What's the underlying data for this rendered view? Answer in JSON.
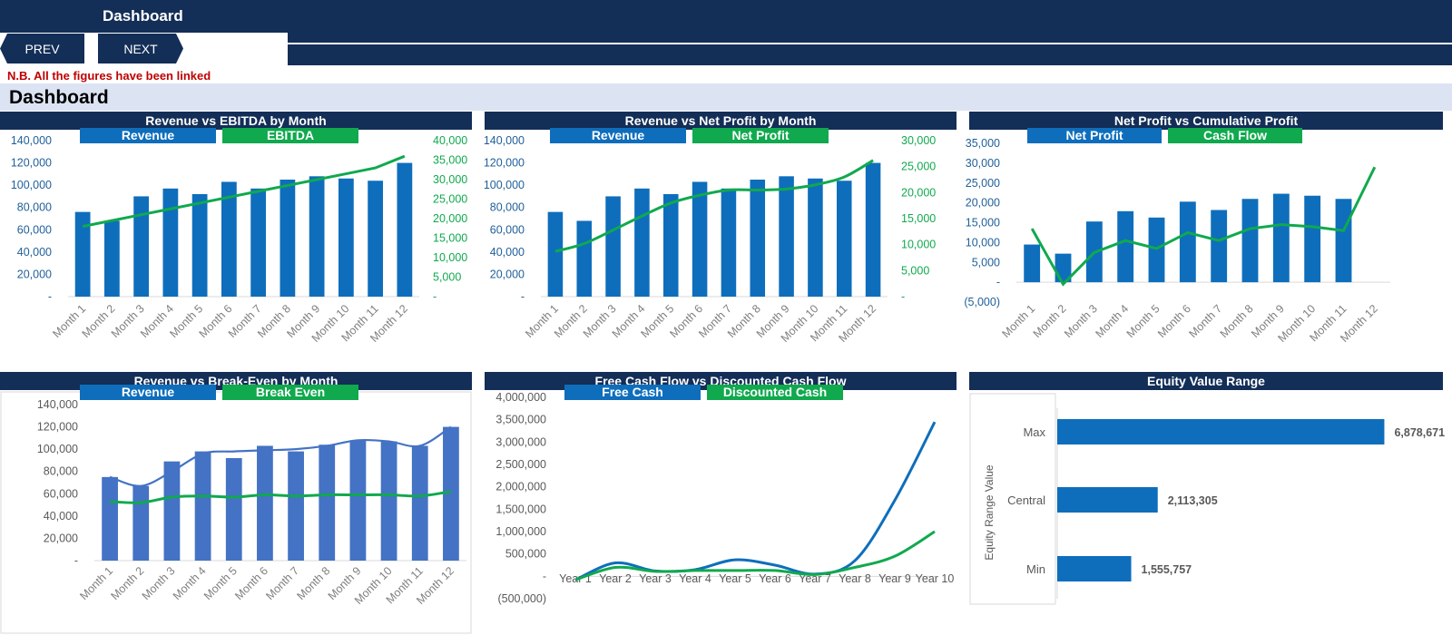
{
  "header": {
    "title": "Dashboard"
  },
  "nav": {
    "prev_label": "PREV",
    "next_label": "NEXT"
  },
  "note": "N.B. All the figures have been linked",
  "section": {
    "title": "Dashboard"
  },
  "colors": {
    "navy": "#132e57",
    "blue": "#0e6ebc",
    "green": "#10a94e",
    "bar_blue2": "#4472c4",
    "note_red": "#c00000",
    "section_bg": "#dce3f2"
  },
  "months": [
    "Month 1",
    "Month 2",
    "Month 3",
    "Month 4",
    "Month 5",
    "Month 6",
    "Month 7",
    "Month 8",
    "Month 9",
    "Month 10",
    "Month 11",
    "Month 12"
  ],
  "years": [
    "Year 1",
    "Year 2",
    "Year 3",
    "Year 4",
    "Year 5",
    "Year 6",
    "Year 7",
    "Year 8",
    "Year 9",
    "Year 10"
  ],
  "chart_data": [
    {
      "id": "c1",
      "type": "bar",
      "title": "Revenue vs EBITDA by Month",
      "legend": [
        {
          "label": "Revenue",
          "color": "#0e6ebc"
        },
        {
          "label": "EBITDA",
          "color": "#10a94e"
        }
      ],
      "categories_key": "months",
      "y_ticks": [
        "140,000",
        "120,000",
        "100,000",
        "80,000",
        "60,000",
        "40,000",
        "20,000",
        "-"
      ],
      "y2_ticks": [
        "40,000",
        "35,000",
        "30,000",
        "25,000",
        "20,000",
        "15,000",
        "10,000",
        "5,000",
        "-"
      ],
      "ylim": [
        0,
        140000
      ],
      "y2lim": [
        0,
        40000
      ],
      "bars": [
        76000,
        68000,
        90000,
        97000,
        92000,
        103000,
        97000,
        105000,
        108000,
        106000,
        104000,
        120000
      ],
      "line": [
        18000,
        19500,
        21000,
        22500,
        24000,
        25500,
        27000,
        28500,
        30000,
        31500,
        33000,
        36000
      ],
      "bar_color": "#0e6ebc",
      "line_color": "#10a94e",
      "smooth": false
    },
    {
      "id": "c2",
      "type": "bar",
      "title": "Revenue vs Net Profit by Month",
      "legend": [
        {
          "label": "Revenue",
          "color": "#0e6ebc"
        },
        {
          "label": "Net Profit",
          "color": "#10a94e"
        }
      ],
      "categories_key": "months",
      "y_ticks": [
        "140,000",
        "120,000",
        "100,000",
        "80,000",
        "60,000",
        "40,000",
        "20,000",
        "-"
      ],
      "y2_ticks": [
        "30,000",
        "25,000",
        "20,000",
        "15,000",
        "10,000",
        "5,000",
        "-"
      ],
      "ylim": [
        0,
        140000
      ],
      "y2lim": [
        0,
        30000
      ],
      "bars": [
        76000,
        68000,
        90000,
        97000,
        92000,
        103000,
        97000,
        105000,
        108000,
        106000,
        104000,
        120000
      ],
      "line": [
        8700,
        10200,
        12800,
        15500,
        18000,
        19500,
        20500,
        20500,
        20700,
        21500,
        23000,
        26200
      ],
      "bar_color": "#0e6ebc",
      "line_color": "#10a94e",
      "smooth": true
    },
    {
      "id": "c3",
      "type": "bar",
      "title": "Net Profit vs Cumulative Profit",
      "legend": [
        {
          "label": "Net Profit",
          "color": "#0e6ebc"
        },
        {
          "label": "Cash Flow",
          "color": "#10a94e"
        }
      ],
      "categories_key": "months",
      "y_ticks": [
        "35,000",
        "30,000",
        "25,000",
        "20,000",
        "15,000",
        "10,000",
        "5,000",
        "-",
        "(5,000)"
      ],
      "ylim": [
        -5000,
        35000
      ],
      "bars": [
        9500,
        7200,
        15300,
        17900,
        16300,
        20300,
        18200,
        21000,
        22300,
        21800,
        21000,
        null
      ],
      "line": [
        13500,
        -500,
        7500,
        10500,
        8500,
        12500,
        10500,
        13500,
        14500,
        14000,
        13000,
        29000
      ],
      "bar_color": "#0e6ebc",
      "line_color": "#10a94e",
      "smooth": false
    },
    {
      "id": "c4",
      "type": "bar",
      "title": "Revenue vs Break-Even by Month",
      "legend": [
        {
          "label": "Revenue",
          "color": "#0e6ebc"
        },
        {
          "label": "Break Even",
          "color": "#10a94e"
        }
      ],
      "categories_key": "months",
      "y_ticks": [
        "140,000",
        "120,000",
        "100,000",
        "80,000",
        "60,000",
        "40,000",
        "20,000",
        "-"
      ],
      "ylim": [
        0,
        140000
      ],
      "bars": [
        75000,
        67000,
        89000,
        98000,
        92000,
        103000,
        98000,
        104000,
        108000,
        107000,
        103000,
        120000
      ],
      "line": [
        53000,
        52000,
        57000,
        58000,
        57000,
        59000,
        58000,
        59000,
        59000,
        59000,
        58000,
        62000
      ],
      "line2": [
        75000,
        67000,
        80000,
        96000,
        98000,
        99000,
        100000,
        103000,
        108000,
        107000,
        103000,
        120000
      ],
      "bar_color": "#4472c4",
      "line_color": "#10a94e",
      "line2_color": "#4472c4",
      "smooth": true
    },
    {
      "id": "c5",
      "type": "line",
      "title": "Free Cash Flow vs Discounted Cash Flow",
      "legend": [
        {
          "label": "Free Cash",
          "color": "#0e6ebc"
        },
        {
          "label": "Discounted Cash",
          "color": "#10a94e"
        }
      ],
      "categories_key": "years",
      "y_ticks": [
        "4,000,000",
        "3,500,000",
        "3,000,000",
        "2,500,000",
        "2,000,000",
        "1,500,000",
        "1,000,000",
        "500,000",
        "-",
        "(500,000)"
      ],
      "ylim": [
        -500000,
        4000000
      ],
      "series": [
        {
          "name": "Free Cash",
          "color": "#0e6ebc",
          "values": [
            -80000,
            300000,
            120000,
            150000,
            370000,
            250000,
            50000,
            350000,
            1700000,
            3450000
          ]
        },
        {
          "name": "Discounted Cash",
          "color": "#10a94e",
          "values": [
            -80000,
            200000,
            110000,
            130000,
            130000,
            130000,
            40000,
            200000,
            450000,
            1000000
          ]
        }
      ]
    },
    {
      "id": "c6",
      "type": "bar",
      "orientation": "horizontal",
      "title": "Equity Value Range",
      "ylabel": "Equity Range Value",
      "categories": [
        "Max",
        "Central",
        "Min"
      ],
      "values": [
        6878671,
        2113305,
        1555757
      ],
      "labels": [
        "6,878,671",
        "2,113,305",
        "1,555,757"
      ],
      "xlim": [
        0,
        7500000
      ],
      "bar_color": "#0e6ebc"
    }
  ]
}
